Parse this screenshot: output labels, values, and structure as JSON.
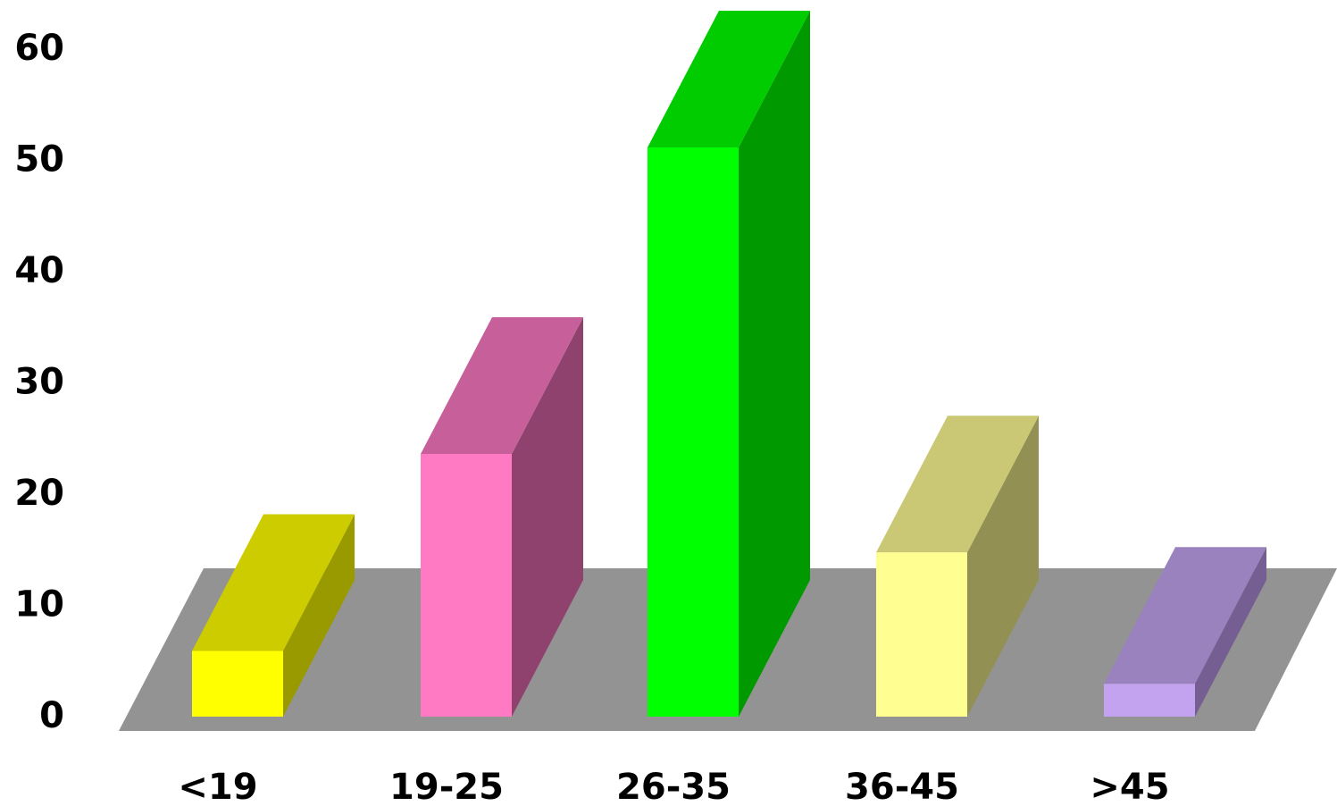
{
  "chart_data": {
    "type": "bar",
    "style": "3d",
    "categories": [
      "<19",
      "19-25",
      "26-35",
      "36-45",
      ">45"
    ],
    "values": [
      6,
      24,
      52,
      15,
      3
    ],
    "ylim": [
      0,
      60
    ],
    "yticks": [
      0,
      10,
      20,
      30,
      40,
      50,
      60
    ],
    "grid": false,
    "floor_color": "#939393",
    "bar_colors": [
      {
        "front": "#ffff00",
        "top": "#cccc00",
        "side": "#999900"
      },
      {
        "front": "#ff7ac2",
        "top": "#c65f9a",
        "side": "#8e426d"
      },
      {
        "front": "#00ff00",
        "top": "#00cc00",
        "side": "#009900"
      },
      {
        "front": "#ffff91",
        "top": "#cac874",
        "side": "#929052"
      },
      {
        "front": "#c3a3f0",
        "top": "#9a82be",
        "side": "#745e92"
      }
    ]
  }
}
